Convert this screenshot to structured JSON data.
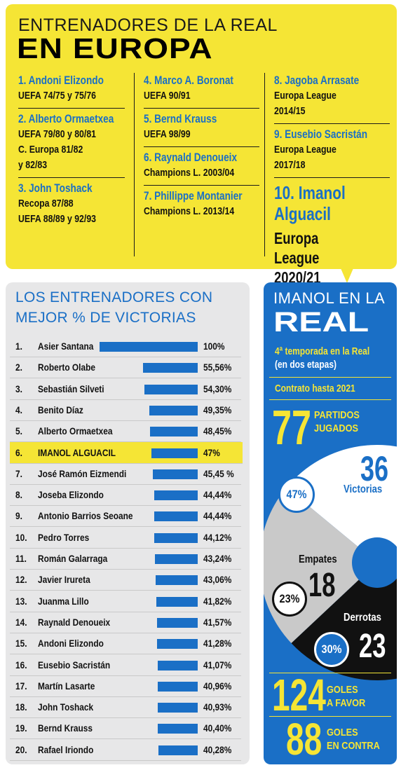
{
  "top": {
    "title_line1": "ENTRENADORES DE LA REAL",
    "title_line2": "EN EUROPA",
    "col1": [
      {
        "name": "1. Andoni Elizondo",
        "detail": "UEFA 74/75 y 75/76"
      },
      {
        "name": "2. Alberto Ormaetxea",
        "detail": "UEFA 79/80 y 80/81\nC. Europa 81/82\ny 82/83"
      },
      {
        "name": "3. John Toshack",
        "detail": "Recopa 87/88\nUEFA 88/89 y 92/93"
      }
    ],
    "col2": [
      {
        "name": "4. Marco A. Boronat",
        "detail": "UEFA 90/91"
      },
      {
        "name": "5. Bernd Krauss",
        "detail": "UEFA 98/99"
      },
      {
        "name": "6. Raynald Denoueix",
        "detail": "Champions L. 2003/04"
      },
      {
        "name": "7. Phillippe Montanier",
        "detail": "Champions L. 2013/14"
      }
    ],
    "col3": [
      {
        "name": "8. Jagoba Arrasate",
        "detail": "Europa League 2014/15"
      },
      {
        "name": "9. Eusebio Sacristán",
        "detail": "Europa League 2017/18"
      }
    ],
    "featured": {
      "name": "10. Imanol Alguacil",
      "detail": "Europa League 2020/21"
    }
  },
  "ranking": {
    "title_line1": "LOS ENTRENADORES CON",
    "title_line2": "MEJOR % DE VICTORIAS"
  },
  "chart_data": {
    "type": "bar",
    "title": "LOS ENTRENADORES CON MEJOR % DE VICTORIAS",
    "orientation": "horizontal",
    "highlight": "IMANOL ALGUACIL",
    "highlight_color": "#f5e535",
    "bar_color": "#1a6fc6",
    "ranks": [
      "1.",
      "2.",
      "3.",
      "4.",
      "5.",
      "6.",
      "7.",
      "8.",
      "9.",
      "10.",
      "11.",
      "12.",
      "13.",
      "14.",
      "15.",
      "16.",
      "17.",
      "18.",
      "19.",
      "20."
    ],
    "categories": [
      "Asier Santana",
      "Roberto Olabe",
      "Sebastián Silveti",
      "Benito Díaz",
      "Alberto Ormaetxea",
      "IMANOL ALGUACIL",
      "José Ramón Eizmendi",
      "Joseba Elizondo",
      "Antonio Barrios Seoane",
      "Pedro Torres",
      "Román Galarraga",
      "Javier Irureta",
      "Juanma Lillo",
      "Raynald Denoueix",
      "Andoni Elizondo",
      "Eusebio Sacristán",
      "Martín Lasarte",
      "John Toshack",
      "Bernd Krauss",
      "Rafael Iriondo"
    ],
    "values": [
      100,
      55.56,
      54.3,
      49.35,
      48.45,
      47,
      45.45,
      44.44,
      44.44,
      44.12,
      43.24,
      43.06,
      41.82,
      41.57,
      41.28,
      41.07,
      40.96,
      40.93,
      40.4,
      40.28
    ],
    "value_labels": [
      "100%",
      "55,56%",
      "54,30%",
      "49,35%",
      "48,45%",
      "47%",
      "45,45 %",
      "44,44%",
      "44,44%",
      "44,12%",
      "43,24%",
      "43,06%",
      "41,82%",
      "41,57%",
      "41,28%",
      "41,07%",
      "40,96%",
      "40,93%",
      "40,40%",
      "40,28%"
    ],
    "xlim": [
      0,
      100
    ]
  },
  "imanol": {
    "title_line1": "IMANOL EN LA",
    "title_line2": "REAL",
    "temporada": "4ª temporada en la Real",
    "etapas": "(en dos etapas)",
    "contrato": "Contrato hasta 2021",
    "partidos_num": "77",
    "partidos_label1": "PARTIDOS",
    "partidos_label2": "JUGADOS",
    "victorias_num": "36",
    "victorias_label": "Victorias",
    "victorias_pct": "47%",
    "empates_num": "18",
    "empates_label": "Empates",
    "empates_pct": "23%",
    "derrotas_num": "23",
    "derrotas_label": "Derrotas",
    "derrotas_pct": "30%",
    "goles_favor_num": "124",
    "goles_favor_label1": "GOLES",
    "goles_favor_label2": "A FAVOR",
    "goles_contra_num": "88",
    "goles_contra_label1": "GOLES",
    "goles_contra_label2": "EN CONTRA",
    "pie": {
      "victorias": 47,
      "empates": 23,
      "derrotas": 30
    },
    "colors": {
      "victorias": "#ffffff",
      "empates": "#c9c9c9",
      "derrotas": "#111111",
      "accent": "#f5e535",
      "blue": "#1a6fc6"
    }
  }
}
